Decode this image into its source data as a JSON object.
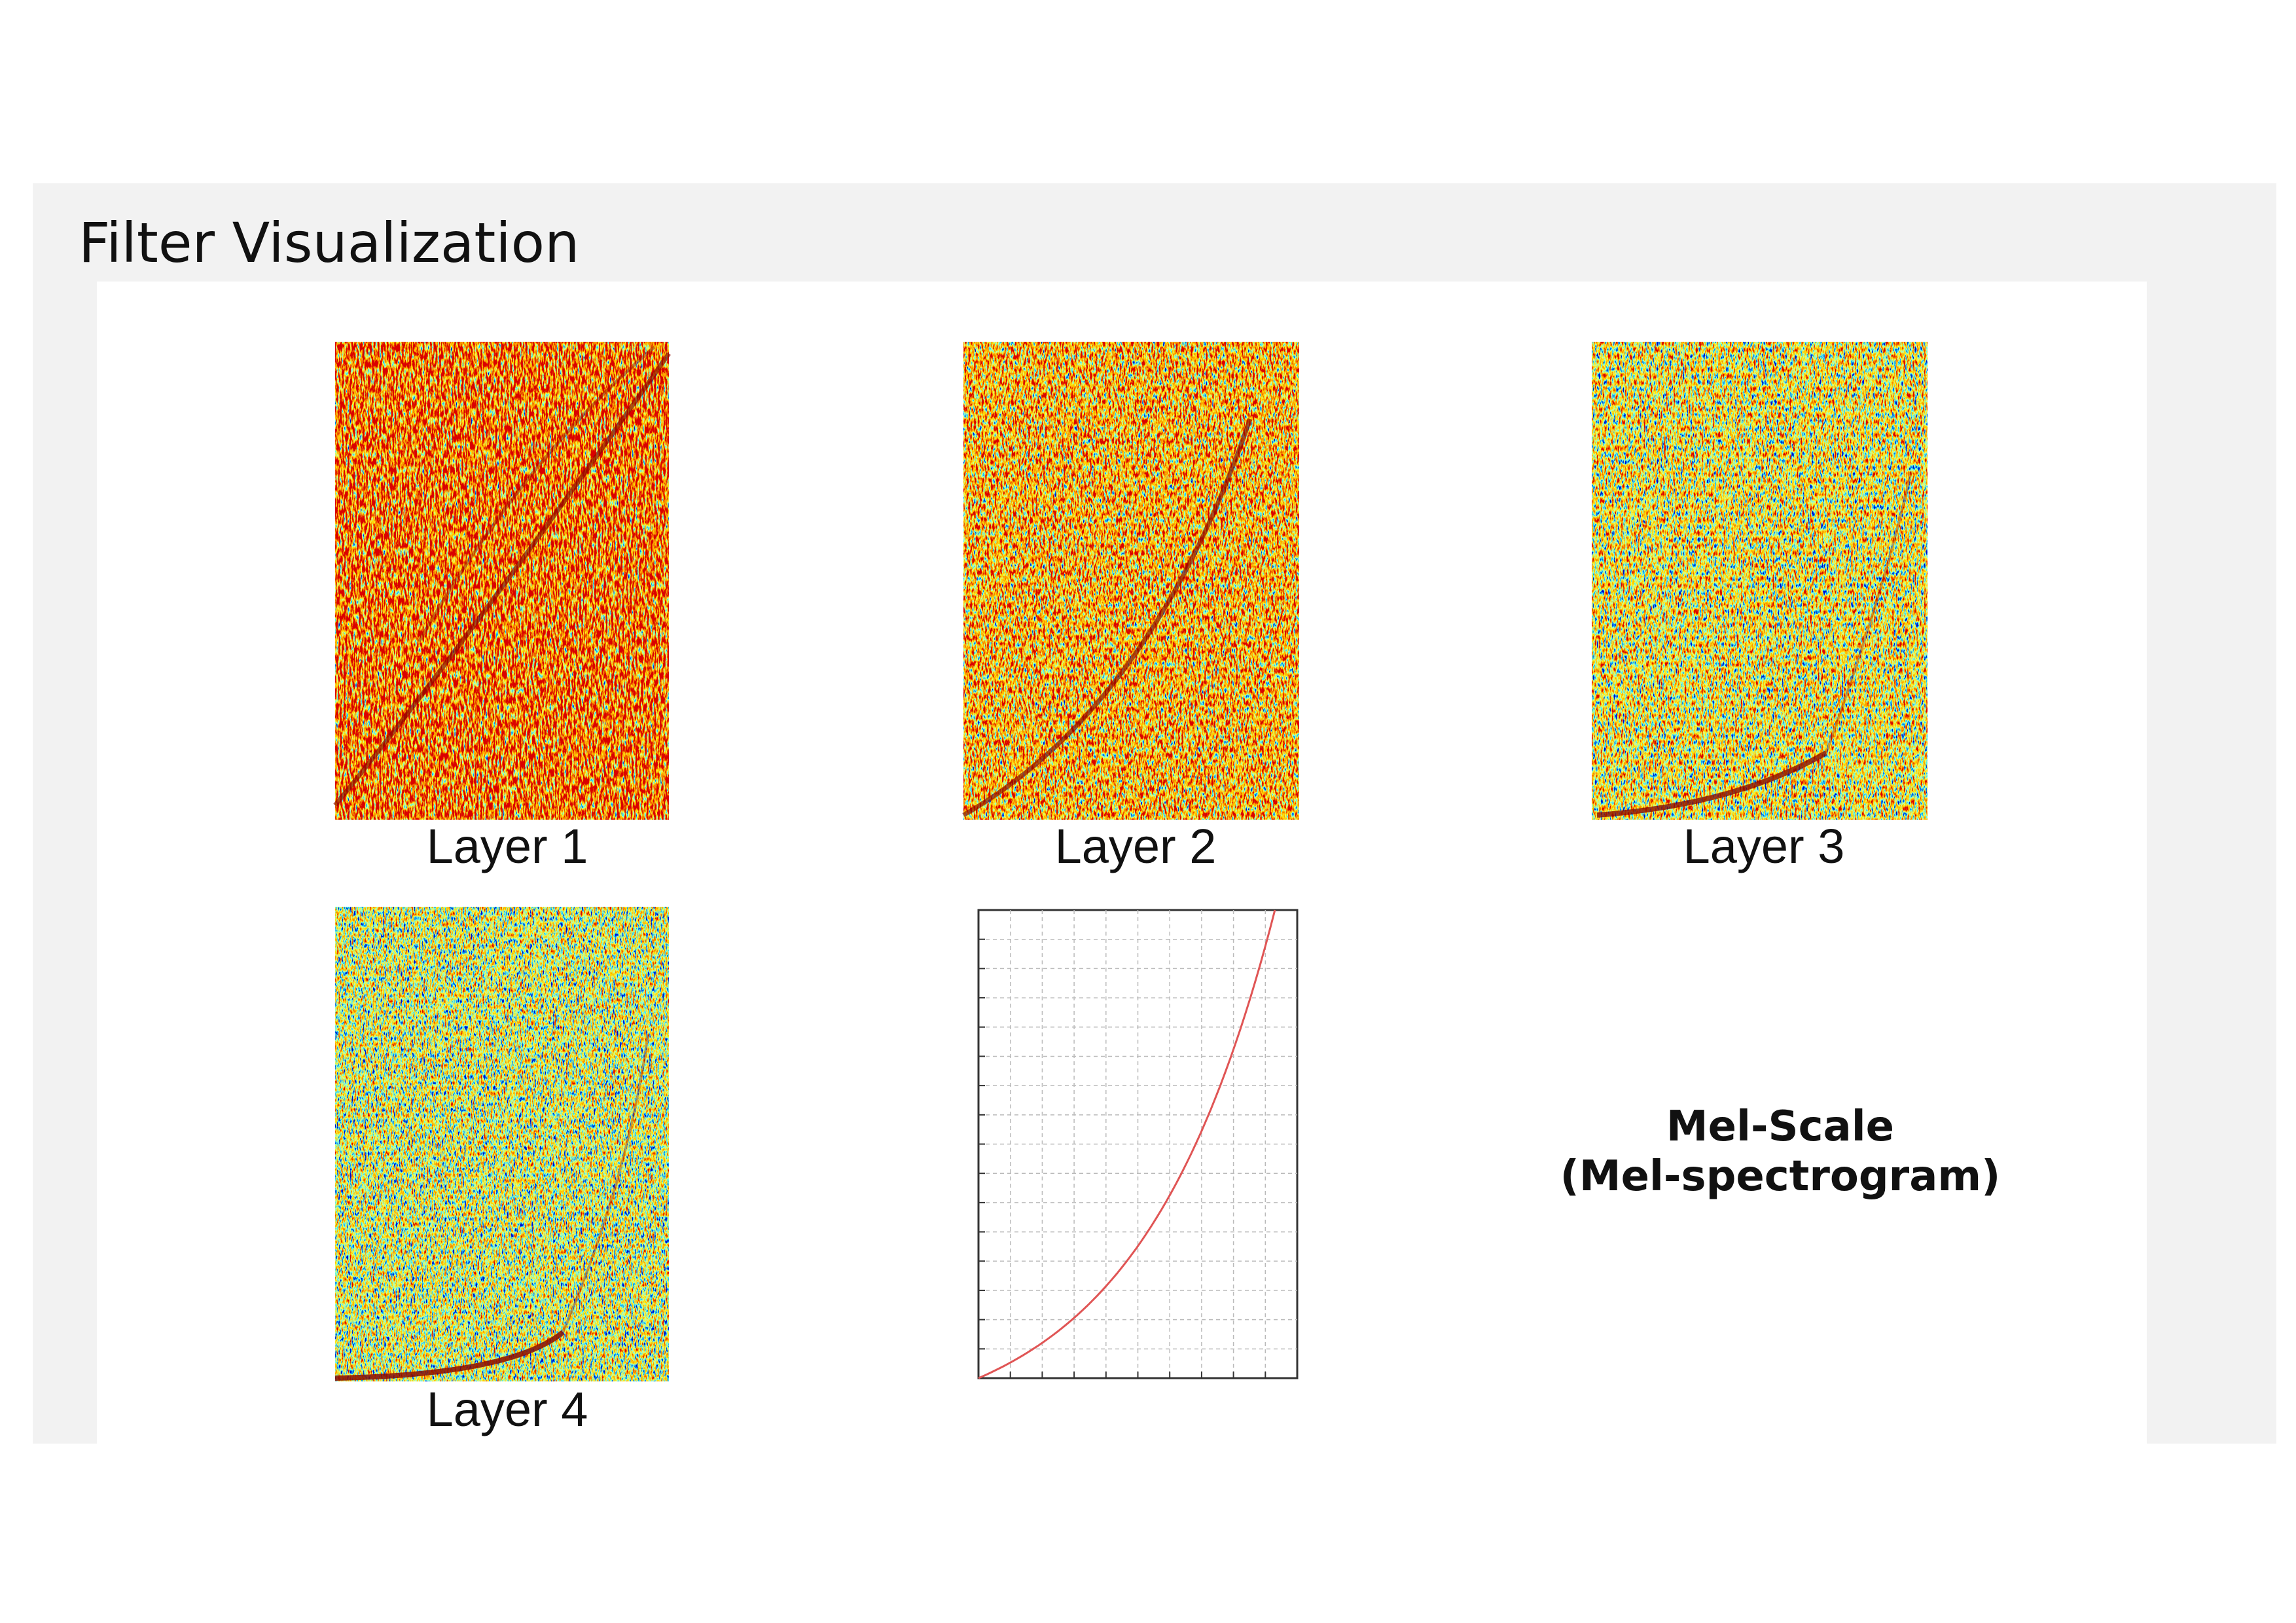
{
  "title": "Filter Visualization",
  "panels": [
    {
      "label": "Layer 1"
    },
    {
      "label": "Layer 2"
    },
    {
      "label": "Layer 3"
    },
    {
      "label": "Layer 4"
    }
  ],
  "mel_note": {
    "line1": "Mel-Scale",
    "line2": "(Mel-spectrogram)"
  }
}
